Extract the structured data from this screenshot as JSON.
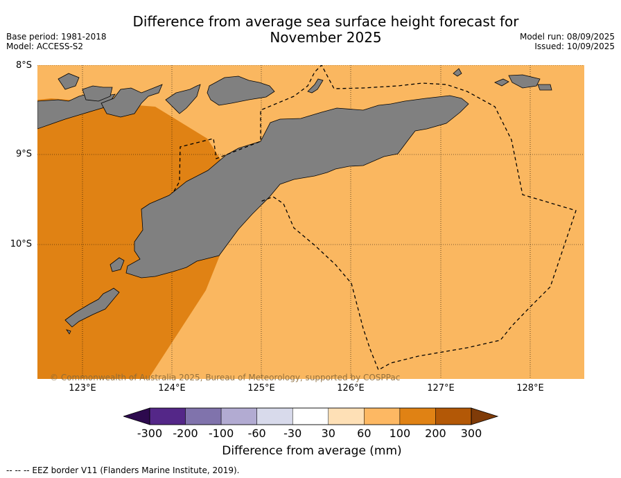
{
  "title": "Difference from average sea surface height forecast for November 2025",
  "meta": {
    "base_period": "Base period: 1981-2018",
    "model": "Model: ACCESS-S2",
    "model_run": "Model run: 08/09/2025",
    "issued": "Issued: 10/09/2025"
  },
  "latitude_labels": [
    "8°S",
    "9°S",
    "10°S"
  ],
  "longitude_labels": [
    "123°E",
    "124°E",
    "125°E",
    "126°E",
    "127°E",
    "128°E"
  ],
  "copyright": "© Commonwealth of Australia 2025, Bureau of Meteorology, supported by COSPPac",
  "colorbar": {
    "ticks": [
      "-300",
      "-200",
      "-100",
      "-60",
      "-30",
      "30",
      "60",
      "100",
      "200",
      "300"
    ],
    "colors": [
      "#2d0a4e",
      "#542788",
      "#8073ac",
      "#b2abd2",
      "#d8daeb",
      "#ffffff",
      "#fee0b6",
      "#fdb863",
      "#e08214",
      "#b35806",
      "#7f3b08"
    ],
    "label": "Difference from average (mm)"
  },
  "legend": {
    "eez": "-- -- -- EEZ border V11 (Flanders Marine Institute, 2019)."
  },
  "colors": {
    "ocean_light": "#fab760",
    "ocean_dark": "#e08214",
    "land": "#808080"
  }
}
